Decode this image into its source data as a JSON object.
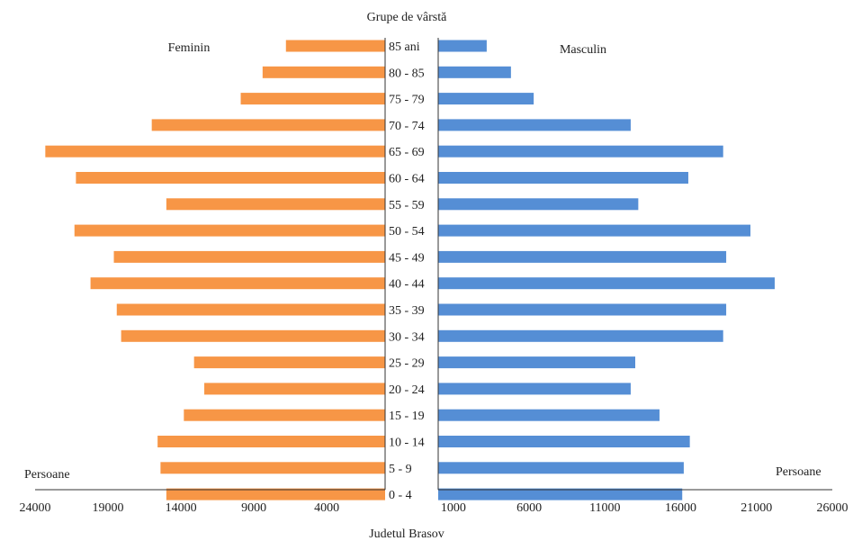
{
  "chart_data": {
    "type": "bar",
    "title": "Grupe de vârstă",
    "caption": "Judetul Brasov",
    "categories": [
      "0 - 4",
      "5 - 9",
      "10 - 14",
      "15 - 19",
      "20 - 24",
      "25 - 29",
      "30 - 34",
      "35 - 39",
      "40 - 44",
      "45 - 49",
      "50 - 54",
      "55 - 59",
      "60 - 64",
      "65 - 69",
      "70 - 74",
      "75 - 79",
      "80 - 85",
      "85 ani"
    ],
    "series": [
      {
        "name": "Feminin",
        "color": "#F79646",
        "values": [
          15000,
          15400,
          15600,
          13800,
          12400,
          13100,
          18100,
          18400,
          20200,
          18600,
          21300,
          15000,
          21200,
          23300,
          16000,
          9900,
          8400,
          6800
        ]
      },
      {
        "name": "Masculin",
        "color": "#558ED5",
        "values": [
          16100,
          16200,
          16600,
          14600,
          12700,
          13000,
          18800,
          19000,
          22200,
          19000,
          20600,
          13200,
          16500,
          18800,
          12700,
          6300,
          4800,
          3200
        ]
      }
    ],
    "left_axis": {
      "label": "Persoane",
      "ticks": [
        "24000",
        "19000",
        "14000",
        "9000",
        "4000"
      ],
      "tick_values": [
        24000,
        19000,
        14000,
        9000,
        4000
      ],
      "range": [
        24000,
        0
      ]
    },
    "right_axis": {
      "label": "Persoane",
      "ticks": [
        "1000",
        "6000",
        "11000",
        "16000",
        "21000",
        "26000"
      ],
      "tick_values": [
        1000,
        6000,
        11000,
        16000,
        21000,
        26000
      ],
      "range": [
        0,
        26000
      ]
    },
    "grid": false,
    "legend": "series names printed at top-left and top-right"
  }
}
